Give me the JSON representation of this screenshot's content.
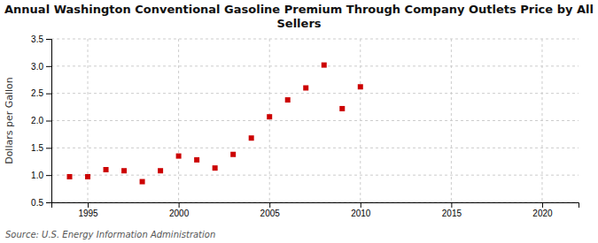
{
  "chart_data": {
    "type": "scatter",
    "title": "Annual Washington Conventional Gasoline Premium Through Company Outlets Price by All\nSellers",
    "ylabel": "Dollars per Gallon",
    "source": "Source: U.S. Energy Information Administration",
    "x": [
      1994,
      1995,
      1996,
      1997,
      1998,
      1999,
      2000,
      2001,
      2002,
      2003,
      2004,
      2005,
      2006,
      2007,
      2008,
      2009,
      2010
    ],
    "values": [
      0.97,
      0.97,
      1.1,
      1.08,
      0.88,
      1.08,
      1.35,
      1.28,
      1.13,
      1.38,
      1.68,
      2.07,
      2.38,
      2.6,
      3.02,
      2.22,
      2.62
    ],
    "xlim": [
      1993,
      2022
    ],
    "ylim": [
      0.5,
      3.5
    ],
    "xticks": [
      1995,
      2000,
      2005,
      2010,
      2015,
      2020
    ],
    "yticks": [
      0.5,
      {
        "value": 1.0,
        "label": "1.0"
      },
      1.5,
      {
        "value": 2.0,
        "label": "2.0"
      },
      2.5,
      {
        "value": 3.0,
        "label": "3.0"
      },
      3.5
    ],
    "color": "#cc0000",
    "marker": "square",
    "grid": true
  }
}
